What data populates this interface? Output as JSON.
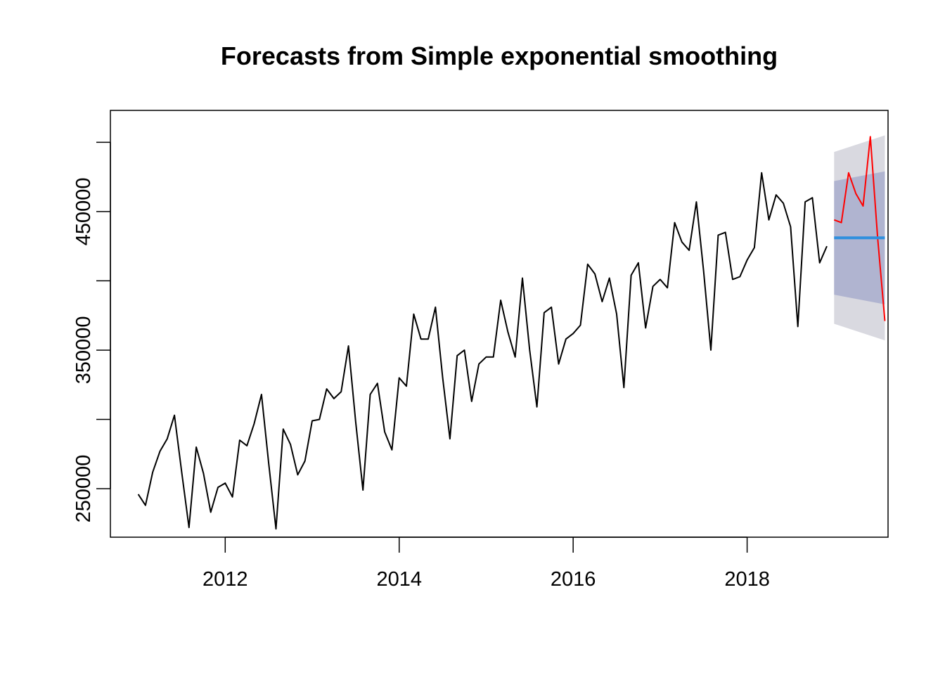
{
  "chart_data": {
    "type": "line",
    "title": "Forecasts from Simple exponential smoothing",
    "xlabel": "",
    "ylabel": "",
    "xlim": [
      2010.68,
      2019.62
    ],
    "ylim": [
      215000,
      523000
    ],
    "x_ticks": [
      2012,
      2014,
      2016,
      2018
    ],
    "x_tick_labels": [
      "2012",
      "2014",
      "2016",
      "2018"
    ],
    "y_ticks": [
      250000,
      300000,
      350000,
      400000,
      450000,
      500000
    ],
    "y_tick_labels": [
      "250000",
      "",
      "350000",
      "",
      "450000",
      ""
    ],
    "grid": false,
    "legend": "none",
    "colors": {
      "history": "#000000",
      "actual_future": "#ff0000",
      "point_forecast": "#2f8fde",
      "pi80": "#b0b4d0",
      "pi95": "#d9d9e0"
    },
    "series": [
      {
        "role": "history",
        "x": [
          2011.0,
          2011.0833,
          2011.1667,
          2011.25,
          2011.3333,
          2011.4167,
          2011.5,
          2011.5833,
          2011.6667,
          2011.75,
          2011.8333,
          2011.9167,
          2012.0,
          2012.0833,
          2012.1667,
          2012.25,
          2012.3333,
          2012.4167,
          2012.5,
          2012.5833,
          2012.6667,
          2012.75,
          2012.8333,
          2012.9167,
          2013.0,
          2013.0833,
          2013.1667,
          2013.25,
          2013.3333,
          2013.4167,
          2013.5,
          2013.5833,
          2013.6667,
          2013.75,
          2013.8333,
          2013.9167,
          2014.0,
          2014.0833,
          2014.1667,
          2014.25,
          2014.3333,
          2014.4167,
          2014.5,
          2014.5833,
          2014.6667,
          2014.75,
          2014.8333,
          2014.9167,
          2015.0,
          2015.0833,
          2015.1667,
          2015.25,
          2015.3333,
          2015.4167,
          2015.5,
          2015.5833,
          2015.6667,
          2015.75,
          2015.8333,
          2015.9167,
          2016.0,
          2016.0833,
          2016.1667,
          2016.25,
          2016.3333,
          2016.4167,
          2016.5,
          2016.5833,
          2016.6667,
          2016.75,
          2016.8333,
          2016.9167,
          2017.0,
          2017.0833,
          2017.1667,
          2017.25,
          2017.3333,
          2017.4167,
          2017.5,
          2017.5833,
          2017.6667,
          2017.75,
          2017.8333,
          2017.9167,
          2018.0,
          2018.0833,
          2018.1667,
          2018.25,
          2018.3333,
          2018.4167,
          2018.5,
          2018.5833,
          2018.6667,
          2018.75,
          2018.8333,
          2018.9167
        ],
        "values": [
          246000,
          238000,
          262000,
          277000,
          286000,
          303000,
          262000,
          222000,
          280000,
          261000,
          233000,
          251000,
          254000,
          244000,
          285000,
          281000,
          297000,
          318000,
          268000,
          221000,
          293000,
          282000,
          260000,
          270000,
          299000,
          300000,
          322000,
          315000,
          320000,
          353000,
          298000,
          249000,
          318000,
          326000,
          291000,
          278000,
          330000,
          324000,
          376000,
          358000,
          358000,
          381000,
          330000,
          286000,
          346000,
          350000,
          313000,
          340000,
          345000,
          345000,
          386000,
          363000,
          345000,
          402000,
          350000,
          309000,
          377000,
          381000,
          340000,
          358000,
          362000,
          368000,
          412000,
          405000,
          385000,
          402000,
          376000,
          323000,
          404000,
          413000,
          366000,
          396000,
          401000,
          395000,
          442000,
          428000,
          422000,
          457000,
          407000,
          350000,
          433000,
          435000,
          401000,
          403000,
          415000,
          424000,
          478000,
          444000,
          462000,
          456000,
          439000,
          367000,
          457000,
          460000,
          413000,
          425000
        ]
      },
      {
        "role": "actual_future",
        "x": [
          2019.0,
          2019.0833,
          2019.1667,
          2019.25,
          2019.3333,
          2019.4167,
          2019.5,
          2019.5833
        ],
        "values": [
          444000,
          442000,
          478000,
          463000,
          454000,
          504000,
          431000,
          371000
        ]
      },
      {
        "role": "point_forecast",
        "x": [
          2019.0,
          2019.0833,
          2019.1667,
          2019.25,
          2019.3333,
          2019.4167,
          2019.5,
          2019.5833
        ],
        "values": [
          431000,
          431000,
          431000,
          431000,
          431000,
          431000,
          431000,
          431000
        ]
      }
    ],
    "intervals": {
      "x": [
        2019.0,
        2019.5833
      ],
      "pi80_upper": [
        472000,
        479000
      ],
      "pi80_lower": [
        390000,
        383000
      ],
      "pi95_upper": [
        493000,
        505000
      ],
      "pi95_lower": [
        369000,
        357000
      ]
    }
  }
}
